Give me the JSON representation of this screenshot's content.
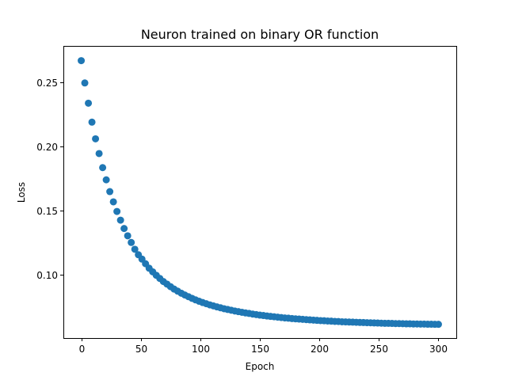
{
  "chart_data": {
    "type": "scatter",
    "title": "Neuron trained on binary OR function",
    "xlabel": "Epoch",
    "ylabel": "Loss",
    "xlim": [
      -15,
      315
    ],
    "ylim": [
      0.0505,
      0.2785
    ],
    "xticks": [
      0,
      50,
      100,
      150,
      200,
      250,
      300
    ],
    "xtick_labels": [
      "0",
      "50",
      "100",
      "150",
      "200",
      "250",
      "300"
    ],
    "yticks": [
      0.1,
      0.15,
      0.2,
      0.25
    ],
    "ytick_labels": [
      "0.10",
      "0.15",
      "0.20",
      "0.25"
    ],
    "grid": false,
    "marker_color": "#1f77b4",
    "series": [
      {
        "x": [
          0,
          3,
          6,
          9,
          12,
          15,
          18,
          21,
          24,
          27,
          30,
          33,
          36,
          39,
          42,
          45,
          48,
          51,
          54,
          57,
          60,
          63,
          66,
          69,
          72,
          75,
          78,
          81,
          84,
          87,
          90,
          93,
          96,
          99,
          102,
          105,
          108,
          111,
          114,
          117,
          120,
          123,
          126,
          129,
          132,
          135,
          138,
          141,
          144,
          147,
          150,
          153,
          156,
          159,
          162,
          165,
          168,
          171,
          174,
          177,
          180,
          183,
          186,
          189,
          192,
          195,
          198,
          201,
          204,
          207,
          210,
          213,
          216,
          219,
          222,
          225,
          228,
          231,
          234,
          237,
          240,
          243,
          246,
          249,
          252,
          255,
          258,
          261,
          264,
          267,
          270,
          273,
          276,
          279,
          282,
          285,
          288,
          291,
          294,
          297,
          300
        ],
        "y": [
          0.267,
          0.2496,
          0.2338,
          0.219,
          0.206,
          0.1945,
          0.1835,
          0.174,
          0.1648,
          0.1568,
          0.1493,
          0.1425,
          0.136,
          0.1303,
          0.1251,
          0.1198,
          0.1155,
          0.1121,
          0.1085,
          0.105,
          0.1022,
          0.0995,
          0.097,
          0.0946,
          0.0926,
          0.0906,
          0.0887,
          0.0871,
          0.0855,
          0.0841,
          0.0828,
          0.0815,
          0.0803,
          0.0792,
          0.0782,
          0.0773,
          0.0764,
          0.0756,
          0.0748,
          0.0741,
          0.0734,
          0.0728,
          0.0722,
          0.0716,
          0.0711,
          0.0706,
          0.0701,
          0.0697,
          0.0692,
          0.0688,
          0.0684,
          0.0681,
          0.0677,
          0.0674,
          0.0671,
          0.0668,
          0.0665,
          0.0662,
          0.066,
          0.0657,
          0.0655,
          0.0653,
          0.0651,
          0.0649,
          0.0647,
          0.0645,
          0.0643,
          0.0641,
          0.064,
          0.0638,
          0.0637,
          0.0635,
          0.0634,
          0.0632,
          0.0631,
          0.063,
          0.0629,
          0.0628,
          0.0627,
          0.0626,
          0.0625,
          0.0624,
          0.0623,
          0.0622,
          0.0621,
          0.062,
          0.062,
          0.0619,
          0.0618,
          0.0618,
          0.0617,
          0.0616,
          0.0616,
          0.0615,
          0.0615,
          0.0614,
          0.0614,
          0.0613,
          0.0613,
          0.0612,
          0.0612
        ]
      }
    ]
  }
}
